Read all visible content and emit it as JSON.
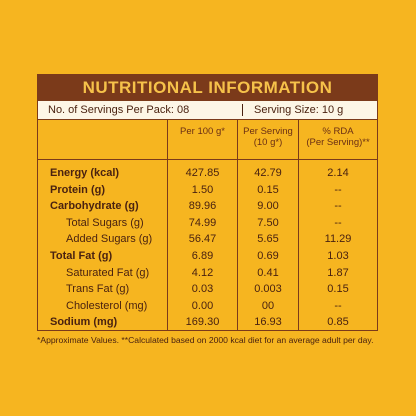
{
  "title": "NUTRITIONAL INFORMATION",
  "servings": "No. of Servings Per Pack: 08",
  "serving_size": "Serving Size: 10 g",
  "table": {
    "header": [
      "Per 100 g*",
      "Per Serving\n(10 g*)",
      "% RDA\n(Per Serving)**"
    ],
    "rows": [
      [
        "Energy (kcal)",
        "427.85",
        "42.79",
        "2.14"
      ],
      [
        "Protein (g)",
        "1.50",
        "0.15",
        "--"
      ],
      [
        "Carbohydrate (g)",
        "89.96",
        "9.00",
        "--"
      ],
      [
        "Total Sugars (g)",
        "74.99",
        "7.50",
        "--"
      ],
      [
        "Added Sugars (g)",
        "56.47",
        "5.65",
        "11.29"
      ],
      [
        "Total Fat (g)",
        "6.89",
        "0.69",
        "1.03"
      ],
      [
        "Saturated Fat (g)",
        "4.12",
        "0.41",
        "1.87"
      ],
      [
        "Trans Fat (g)",
        "0.03",
        "0.003",
        "0.15"
      ],
      [
        "Cholesterol (mg)",
        "0.00",
        "00",
        "--"
      ],
      [
        "Sodium (mg)",
        "169.30",
        "16.93",
        "0.85"
      ]
    ]
  },
  "footnote": "*Approximate Values. **Calculated based on 2000 kcal diet for an average adult per day."
}
